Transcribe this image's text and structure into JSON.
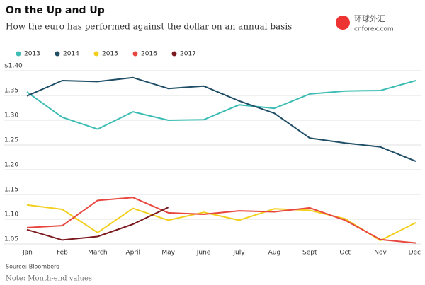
{
  "chart_data": {
    "type": "line",
    "title": "On the Up and Up",
    "subtitle": "How the euro has performed against the dollar on an annual basis",
    "source": "Source: Bloomberg",
    "note": "Note: Month-end values",
    "watermark": [
      "环球外汇",
      "cnforex.com"
    ],
    "categories": [
      "Jan",
      "Feb",
      "March",
      "April",
      "May",
      "June",
      "July",
      "Aug",
      "Sept",
      "Oct",
      "Nov",
      "Dec"
    ],
    "series": [
      {
        "name": "2013",
        "color": "#3dbdb4",
        "values": [
          1.357,
          1.306,
          1.282,
          1.317,
          1.3,
          1.301,
          1.331,
          1.324,
          1.353,
          1.359,
          1.36,
          1.38
        ]
      },
      {
        "name": "2014",
        "color": "#1f4e66",
        "values": [
          1.349,
          1.38,
          1.378,
          1.386,
          1.364,
          1.369,
          1.339,
          1.314,
          1.264,
          1.254,
          1.246,
          1.217
        ]
      },
      {
        "name": "2015",
        "color": "#f2cf1d",
        "values": [
          1.129,
          1.12,
          1.073,
          1.122,
          1.098,
          1.114,
          1.098,
          1.121,
          1.118,
          1.101,
          1.057,
          1.093
        ]
      },
      {
        "name": "2016",
        "color": "#e8473f",
        "values": [
          1.083,
          1.087,
          1.138,
          1.144,
          1.113,
          1.11,
          1.117,
          1.115,
          1.123,
          1.098,
          1.059,
          1.052
        ]
      },
      {
        "name": "2017",
        "color": "#7b1a1e",
        "values": [
          1.079,
          1.058,
          1.065,
          1.09,
          1.124,
          null,
          null,
          null,
          null,
          null,
          null,
          null
        ]
      }
    ],
    "ylim": [
      1.05,
      1.4
    ],
    "yticks": [
      {
        "value": 1.4,
        "label": "$1.40"
      },
      1.35,
      {
        "value": 1.3,
        "label": "1.30"
      },
      1.25,
      {
        "value": 1.2,
        "label": "1.20"
      },
      1.15,
      {
        "value": 1.1,
        "label": "1.10"
      },
      1.05
    ],
    "grid": true
  }
}
